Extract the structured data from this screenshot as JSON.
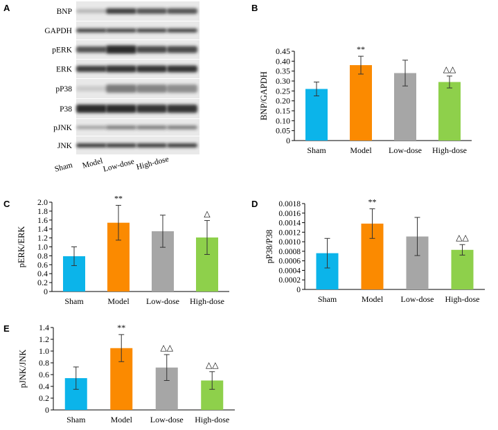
{
  "figure": {
    "panel_letters": [
      "A",
      "B",
      "C",
      "D",
      "E"
    ],
    "blot": {
      "rows": [
        "BNP",
        "GAPDH",
        "pERK",
        "ERK",
        "pP38",
        "P38",
        "pJNK",
        "JNK"
      ],
      "lanes": [
        "Sham",
        "Model",
        "Low-dose",
        "High-dose"
      ]
    }
  },
  "colors": {
    "sham": "#0bb4ea",
    "model": "#fb8a00",
    "low": "#a6a6a6",
    "high": "#8ed04b"
  },
  "chart_data": [
    {
      "panel": "B",
      "type": "bar",
      "categories": [
        "Sham",
        "Model",
        "Low-dose",
        "High-dose"
      ],
      "values": [
        0.26,
        0.38,
        0.34,
        0.295
      ],
      "errors": [
        0.035,
        0.045,
        0.065,
        0.03
      ],
      "annotations": [
        "",
        "**",
        "",
        "△△"
      ],
      "ylabel": "BNP/GAPDH",
      "ylim": [
        0,
        0.45
      ],
      "yticks": [
        "0",
        "0.05",
        "0.10",
        "0.15",
        "0.20",
        "0.25",
        "0.30",
        "0.35",
        "0.40",
        "0.45"
      ]
    },
    {
      "panel": "C",
      "type": "bar",
      "categories": [
        "Sham",
        "Model",
        "Low-dose",
        "High-dose"
      ],
      "values": [
        0.79,
        1.54,
        1.35,
        1.21
      ],
      "errors": [
        0.21,
        0.39,
        0.36,
        0.38
      ],
      "annotations": [
        "",
        "**",
        "",
        "△"
      ],
      "ylabel": "pERK/ERK",
      "ylim": [
        0,
        2.0
      ],
      "yticks": [
        "0",
        "0.2",
        "0.4",
        "0.6",
        "0.8",
        "1.0",
        "1.2",
        "1.4",
        "1.6",
        "1.8",
        "2.0"
      ]
    },
    {
      "panel": "D",
      "type": "bar",
      "categories": [
        "Sham",
        "Model",
        "Low-dose",
        "High-dose"
      ],
      "values": [
        0.00076,
        0.00138,
        0.00111,
        0.00083
      ],
      "errors": [
        0.00031,
        0.00031,
        0.0004,
        0.00011
      ],
      "annotations": [
        "",
        "**",
        "",
        "△△"
      ],
      "ylabel": "pP38/P38",
      "ylim": [
        0,
        0.0018
      ],
      "yticks": [
        "0",
        "0.0002",
        "0.0004",
        "0.0006",
        "0.0008",
        "0.0010",
        "0.0012",
        "0.0014",
        "0.0016",
        "0.0018"
      ]
    },
    {
      "panel": "E",
      "type": "bar",
      "categories": [
        "Sham",
        "Model",
        "Low-dose",
        "High-dose"
      ],
      "values": [
        0.54,
        1.05,
        0.72,
        0.5
      ],
      "errors": [
        0.19,
        0.23,
        0.22,
        0.15
      ],
      "annotations": [
        "",
        "**",
        "△△",
        "△△"
      ],
      "ylabel": "pJNK/JNK",
      "ylim": [
        0,
        1.4
      ],
      "yticks": [
        "0",
        "0.2",
        "0.4",
        "0.6",
        "0.8",
        "1.0",
        "1.2",
        "1.4"
      ]
    }
  ]
}
